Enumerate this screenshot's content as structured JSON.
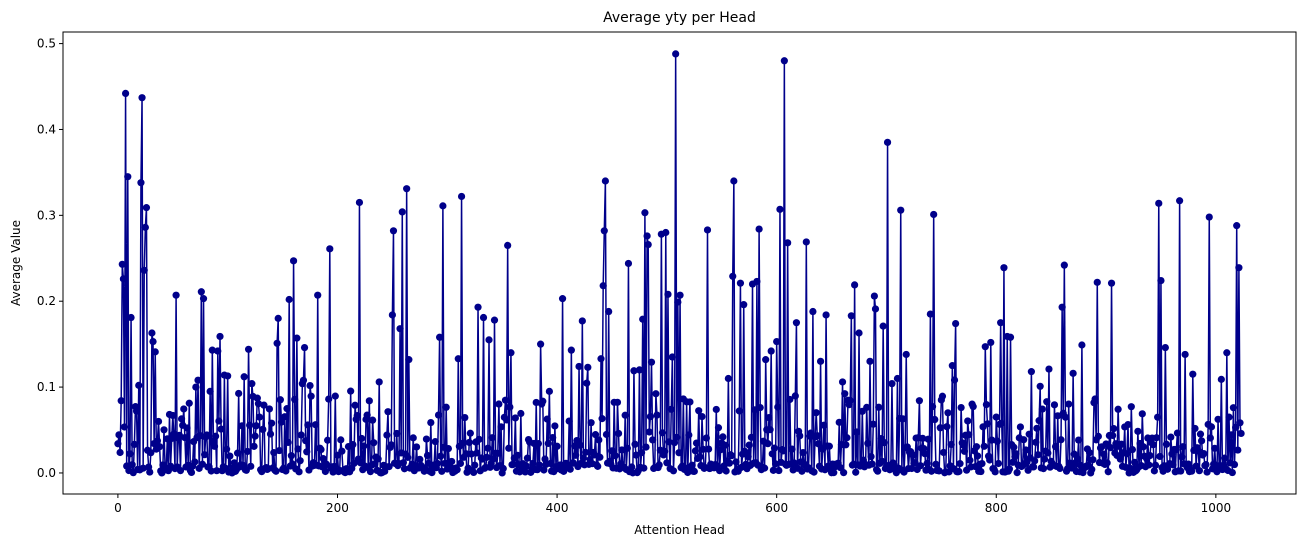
{
  "chart_data": {
    "type": "line",
    "title": "Average yty per Head",
    "xlabel": "Attention Head",
    "ylabel": "Average Value",
    "xlim": [
      -50,
      1073
    ],
    "ylim": [
      -0.0245,
      0.5135
    ],
    "xticks": [
      0,
      200,
      400,
      600,
      800,
      1000
    ],
    "yticks": [
      0.0,
      0.1,
      0.2,
      0.3,
      0.4,
      0.5
    ],
    "ytick_labels": [
      "0.0",
      "0.1",
      "0.2",
      "0.3",
      "0.4",
      "0.5"
    ],
    "grid": false,
    "marker": "circle",
    "color": "#00008b",
    "n_points": 1024,
    "series": [
      {
        "peaks": [
          [
            0,
            0.034
          ],
          [
            4,
            0.243
          ],
          [
            5,
            0.226
          ],
          [
            7,
            0.442
          ],
          [
            9,
            0.345
          ],
          [
            12,
            0.181
          ],
          [
            19,
            0.102
          ],
          [
            21,
            0.338
          ],
          [
            22,
            0.437
          ],
          [
            24,
            0.236
          ],
          [
            25,
            0.286
          ],
          [
            26,
            0.309
          ],
          [
            31,
            0.163
          ],
          [
            32,
            0.153
          ],
          [
            34,
            0.141
          ],
          [
            37,
            0.06
          ],
          [
            50,
            0.067
          ],
          [
            53,
            0.207
          ],
          [
            58,
            0.063
          ],
          [
            71,
            0.1
          ],
          [
            73,
            0.108
          ],
          [
            76,
            0.211
          ],
          [
            78,
            0.203
          ],
          [
            84,
            0.095
          ],
          [
            86,
            0.143
          ],
          [
            91,
            0.142
          ],
          [
            93,
            0.159
          ],
          [
            97,
            0.114
          ],
          [
            100,
            0.113
          ],
          [
            115,
            0.112
          ],
          [
            119,
            0.144
          ],
          [
            122,
            0.104
          ],
          [
            129,
            0.065
          ],
          [
            145,
            0.151
          ],
          [
            146,
            0.18
          ],
          [
            156,
            0.202
          ],
          [
            160,
            0.247
          ],
          [
            163,
            0.157
          ],
          [
            168,
            0.104
          ],
          [
            170,
            0.146
          ],
          [
            182,
            0.207
          ],
          [
            193,
            0.261
          ],
          [
            220,
            0.315
          ],
          [
            229,
            0.084
          ],
          [
            238,
            0.106
          ],
          [
            250,
            0.184
          ],
          [
            251,
            0.282
          ],
          [
            257,
            0.168
          ],
          [
            259,
            0.304
          ],
          [
            263,
            0.331
          ],
          [
            265,
            0.132
          ],
          [
            293,
            0.158
          ],
          [
            296,
            0.311
          ],
          [
            310,
            0.133
          ],
          [
            313,
            0.322
          ],
          [
            328,
            0.193
          ],
          [
            333,
            0.181
          ],
          [
            338,
            0.155
          ],
          [
            343,
            0.178
          ],
          [
            355,
            0.265
          ],
          [
            358,
            0.14
          ],
          [
            385,
            0.15
          ],
          [
            393,
            0.095
          ],
          [
            405,
            0.203
          ],
          [
            413,
            0.143
          ],
          [
            420,
            0.124
          ],
          [
            423,
            0.177
          ],
          [
            428,
            0.123
          ],
          [
            440,
            0.133
          ],
          [
            442,
            0.218
          ],
          [
            443,
            0.282
          ],
          [
            444,
            0.34
          ],
          [
            447,
            0.188
          ],
          [
            456,
            0.046
          ],
          [
            465,
            0.244
          ],
          [
            470,
            0.119
          ],
          [
            475,
            0.12
          ],
          [
            478,
            0.179
          ],
          [
            480,
            0.303
          ],
          [
            482,
            0.276
          ],
          [
            483,
            0.266
          ],
          [
            486,
            0.129
          ],
          [
            495,
            0.278
          ],
          [
            499,
            0.28
          ],
          [
            501,
            0.208
          ],
          [
            505,
            0.135
          ],
          [
            508,
            0.488
          ],
          [
            510,
            0.199
          ],
          [
            512,
            0.207
          ],
          [
            537,
            0.283
          ],
          [
            556,
            0.11
          ],
          [
            560,
            0.229
          ],
          [
            561,
            0.34
          ],
          [
            567,
            0.221
          ],
          [
            570,
            0.196
          ],
          [
            578,
            0.22
          ],
          [
            582,
            0.223
          ],
          [
            584,
            0.284
          ],
          [
            590,
            0.132
          ],
          [
            595,
            0.142
          ],
          [
            600,
            0.153
          ],
          [
            603,
            0.307
          ],
          [
            607,
            0.48
          ],
          [
            610,
            0.268
          ],
          [
            618,
            0.175
          ],
          [
            627,
            0.269
          ],
          [
            633,
            0.188
          ],
          [
            640,
            0.13
          ],
          [
            645,
            0.184
          ],
          [
            660,
            0.106
          ],
          [
            668,
            0.183
          ],
          [
            671,
            0.219
          ],
          [
            675,
            0.163
          ],
          [
            685,
            0.13
          ],
          [
            689,
            0.206
          ],
          [
            690,
            0.191
          ],
          [
            697,
            0.171
          ],
          [
            701,
            0.385
          ],
          [
            705,
            0.104
          ],
          [
            710,
            0.11
          ],
          [
            713,
            0.306
          ],
          [
            718,
            0.138
          ],
          [
            740,
            0.185
          ],
          [
            743,
            0.301
          ],
          [
            750,
            0.085
          ],
          [
            760,
            0.125
          ],
          [
            763,
            0.174
          ],
          [
            790,
            0.147
          ],
          [
            795,
            0.152
          ],
          [
            804,
            0.175
          ],
          [
            807,
            0.239
          ],
          [
            810,
            0.159
          ],
          [
            813,
            0.158
          ],
          [
            832,
            0.118
          ],
          [
            848,
            0.121
          ],
          [
            860,
            0.193
          ],
          [
            862,
            0.242
          ],
          [
            870,
            0.116
          ],
          [
            878,
            0.149
          ],
          [
            892,
            0.222
          ],
          [
            905,
            0.221
          ],
          [
            948,
            0.314
          ],
          [
            950,
            0.224
          ],
          [
            954,
            0.146
          ],
          [
            967,
            0.317
          ],
          [
            972,
            0.138
          ],
          [
            979,
            0.115
          ],
          [
            994,
            0.298
          ],
          [
            1005,
            0.109
          ],
          [
            1010,
            0.14
          ],
          [
            1016,
            0.076
          ],
          [
            1019,
            0.288
          ],
          [
            1021,
            0.239
          ],
          [
            1023,
            0.046
          ]
        ]
      }
    ]
  }
}
